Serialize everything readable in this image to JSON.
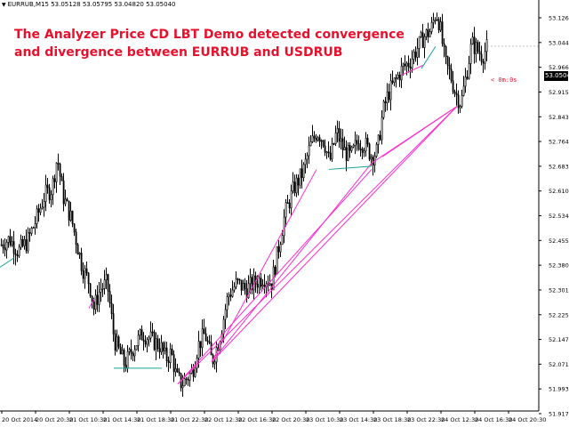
{
  "window": {
    "symbol_info": "EURRUB,M15  53.05128 53.05795 53.04820 53.05040",
    "annotation_line1": "The Analyzer Price CD LBT Demo detected convergence",
    "annotation_line2": "and divergence between EURRUB and USDRUB",
    "countdown": "< 0m:0s",
    "current_price": "53.05040"
  },
  "colors": {
    "background": "#ffffff",
    "candles": "#000000",
    "annotation": "#e8112d",
    "signal_lines": "#ff2dcc",
    "convergence_lines": "#1aa39a"
  },
  "chart_data": {
    "type": "candlestick",
    "symbol": "EURRUB",
    "timeframe": "M15",
    "y_ticks": [
      "53.12640",
      "53.04400",
      "52.96640",
      "52.91520",
      "52.84320",
      "52.76400",
      "52.68320",
      "52.61040",
      "52.53440",
      "52.45590",
      "52.38000",
      "52.30180",
      "52.22590",
      "52.14780",
      "52.07180",
      "51.99360",
      "51.91770"
    ],
    "y_range": [
      51.9,
      53.18
    ],
    "x_ticks": [
      "20 Oct 2014",
      "20 Oct 20:30",
      "21 Oct 10:30",
      "21 Oct 14:30",
      "21 Oct 18:30",
      "21 Oct 22:30",
      "22 Oct 12:30",
      "22 Oct 16:30",
      "22 Oct 20:30",
      "23 Oct 10:30",
      "23 Oct 14:30",
      "23 Oct 18:30",
      "23 Oct 22:30",
      "24 Oct 12:30",
      "24 Oct 16:30",
      "24 Oct 20:30"
    ],
    "price_path": [
      [
        0,
        52.42
      ],
      [
        10,
        52.44
      ],
      [
        20,
        52.4
      ],
      [
        30,
        52.43
      ],
      [
        40,
        52.5
      ],
      [
        50,
        52.58
      ],
      [
        58,
        52.6
      ],
      [
        64,
        52.7
      ],
      [
        70,
        52.58
      ],
      [
        80,
        52.5
      ],
      [
        92,
        52.35
      ],
      [
        100,
        52.3
      ],
      [
        105,
        52.22
      ],
      [
        112,
        52.28
      ],
      [
        120,
        52.3
      ],
      [
        128,
        52.12
      ],
      [
        134,
        52.08
      ],
      [
        140,
        52.04
      ],
      [
        150,
        52.1
      ],
      [
        160,
        52.14
      ],
      [
        170,
        52.12
      ],
      [
        180,
        52.1
      ],
      [
        186,
        52.06
      ],
      [
        192,
        52.08
      ],
      [
        198,
        52.0
      ],
      [
        204,
        51.98
      ],
      [
        210,
        52.0
      ],
      [
        216,
        52.02
      ],
      [
        222,
        52.1
      ],
      [
        230,
        52.14
      ],
      [
        238,
        52.05
      ],
      [
        246,
        52.12
      ],
      [
        256,
        52.26
      ],
      [
        266,
        52.3
      ],
      [
        276,
        52.28
      ],
      [
        286,
        52.3
      ],
      [
        296,
        52.32
      ],
      [
        305,
        52.3
      ],
      [
        312,
        52.4
      ],
      [
        320,
        52.52
      ],
      [
        330,
        52.6
      ],
      [
        340,
        52.65
      ],
      [
        348,
        52.73
      ],
      [
        356,
        52.78
      ],
      [
        364,
        52.75
      ],
      [
        370,
        52.68
      ],
      [
        378,
        52.78
      ],
      [
        386,
        52.72
      ],
      [
        394,
        52.7
      ],
      [
        402,
        52.75
      ],
      [
        410,
        52.74
      ],
      [
        418,
        52.7
      ],
      [
        424,
        52.72
      ],
      [
        430,
        52.84
      ],
      [
        436,
        52.9
      ],
      [
        444,
        52.94
      ],
      [
        452,
        52.98
      ],
      [
        460,
        53.0
      ],
      [
        468,
        53.04
      ],
      [
        476,
        53.08
      ],
      [
        484,
        53.1
      ],
      [
        490,
        53.16
      ],
      [
        494,
        53.12
      ],
      [
        500,
        53.0
      ],
      [
        506,
        52.96
      ],
      [
        512,
        52.9
      ],
      [
        518,
        52.87
      ],
      [
        524,
        52.96
      ],
      [
        530,
        53.06
      ],
      [
        536,
        53.04
      ],
      [
        542,
        53.02
      ],
      [
        548,
        53.05
      ]
    ],
    "signal_lines": [
      {
        "from": [
          238,
          52.05
        ],
        "to": [
          356,
          52.66
        ]
      },
      {
        "from": [
          238,
          52.05
        ],
        "to": [
          418,
          52.68
        ]
      },
      {
        "from": [
          200,
          51.98
        ],
        "to": [
          418,
          52.66
        ]
      },
      {
        "from": [
          200,
          51.98
        ],
        "to": [
          514,
          52.86
        ]
      },
      {
        "from": [
          238,
          52.05
        ],
        "to": [
          514,
          52.86
        ]
      },
      {
        "from": [
          418,
          52.68
        ],
        "to": [
          514,
          52.86
        ]
      },
      {
        "from": [
          430,
          52.7
        ],
        "to": [
          514,
          52.86
        ]
      },
      {
        "from": [
          100,
          52.22
        ],
        "to": [
          106,
          52.25
        ]
      },
      {
        "from": [
          452,
          52.96
        ],
        "to": [
          476,
          52.99
        ]
      }
    ],
    "convergence_lines": [
      {
        "from": [
          0,
          52.35
        ],
        "to": [
          16,
          52.38
        ]
      },
      {
        "from": [
          128,
          52.03
        ],
        "to": [
          182,
          52.03
        ]
      },
      {
        "from": [
          370,
          52.66
        ],
        "to": [
          418,
          52.67
        ]
      },
      {
        "from": [
          474,
          52.98
        ],
        "to": [
          490,
          53.05
        ]
      }
    ]
  }
}
